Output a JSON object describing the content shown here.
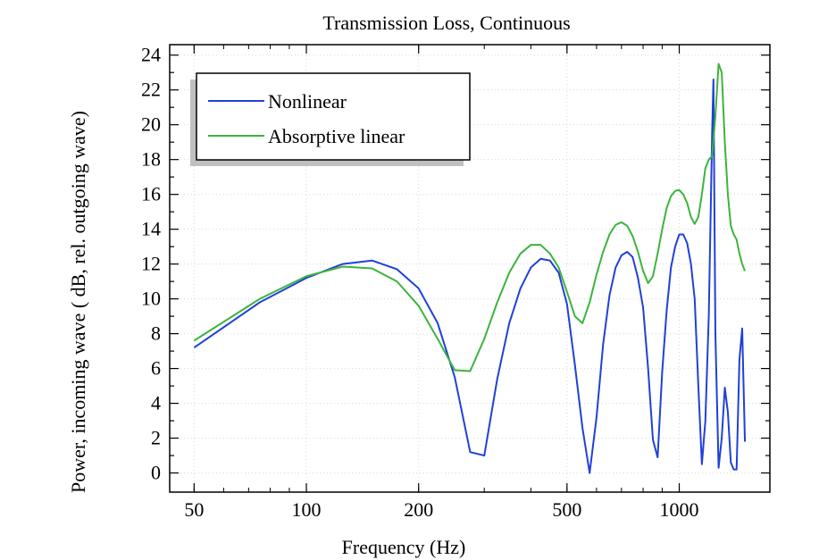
{
  "chart_data": {
    "type": "line",
    "title": "Transmission Loss, Continuous",
    "xlabel": "Frequency (Hz)",
    "ylabel": "Power, incoming wave ( dB, rel. outgoing wave)",
    "x_scale": "log",
    "xlim": [
      43,
      1750
    ],
    "ylim": [
      -1.1,
      24.6
    ],
    "x_ticks": [
      50,
      100,
      200,
      500,
      1000
    ],
    "x_tick_labels": [
      "50",
      "100",
      "200",
      "500",
      "1000"
    ],
    "y_ticks": [
      0,
      2,
      4,
      6,
      8,
      10,
      12,
      14,
      16,
      18,
      20,
      22,
      24
    ],
    "y_tick_labels": [
      "0",
      "2",
      "4",
      "6",
      "8",
      "10",
      "12",
      "14",
      "16",
      "18",
      "20",
      "22",
      "24"
    ],
    "grid": true,
    "legend_position": "top-left",
    "series": [
      {
        "name": "Nonlinear",
        "color": "#2140d8",
        "points": [
          [
            50,
            7.2
          ],
          [
            75,
            9.8
          ],
          [
            100,
            11.2
          ],
          [
            125,
            12.0
          ],
          [
            150,
            12.2
          ],
          [
            175,
            11.7
          ],
          [
            200,
            10.6
          ],
          [
            225,
            8.6
          ],
          [
            250,
            5.5
          ],
          [
            275,
            1.2
          ],
          [
            300,
            1.0
          ],
          [
            325,
            5.4
          ],
          [
            350,
            8.6
          ],
          [
            375,
            10.6
          ],
          [
            400,
            11.8
          ],
          [
            425,
            12.3
          ],
          [
            450,
            12.2
          ],
          [
            475,
            11.5
          ],
          [
            500,
            9.7
          ],
          [
            525,
            6.2
          ],
          [
            550,
            2.6
          ],
          [
            575,
            0.0
          ],
          [
            600,
            3.2
          ],
          [
            625,
            7.4
          ],
          [
            650,
            10.2
          ],
          [
            675,
            11.8
          ],
          [
            700,
            12.5
          ],
          [
            725,
            12.7
          ],
          [
            750,
            12.4
          ],
          [
            775,
            11.2
          ],
          [
            800,
            9.5
          ],
          [
            825,
            6.0
          ],
          [
            850,
            1.9
          ],
          [
            875,
            0.9
          ],
          [
            900,
            5.8
          ],
          [
            925,
            9.3
          ],
          [
            950,
            11.8
          ],
          [
            975,
            13.0
          ],
          [
            1000,
            13.7
          ],
          [
            1025,
            13.7
          ],
          [
            1050,
            13.2
          ],
          [
            1075,
            12.0
          ],
          [
            1100,
            10.0
          ],
          [
            1125,
            5.0
          ],
          [
            1150,
            0.5
          ],
          [
            1175,
            3.0
          ],
          [
            1200,
            9.0
          ],
          [
            1225,
            19.5
          ],
          [
            1235,
            22.6
          ],
          [
            1250,
            8.0
          ],
          [
            1275,
            0.3
          ],
          [
            1300,
            2.0
          ],
          [
            1325,
            4.9
          ],
          [
            1350,
            3.5
          ],
          [
            1375,
            0.6
          ],
          [
            1400,
            0.2
          ],
          [
            1425,
            0.2
          ],
          [
            1450,
            6.5
          ],
          [
            1475,
            8.3
          ],
          [
            1500,
            1.8
          ]
        ]
      },
      {
        "name": "Absorptive linear",
        "color": "#3cb43c",
        "points": [
          [
            50,
            7.6
          ],
          [
            75,
            10.0
          ],
          [
            100,
            11.3
          ],
          [
            125,
            11.85
          ],
          [
            150,
            11.75
          ],
          [
            175,
            11.0
          ],
          [
            200,
            9.6
          ],
          [
            225,
            7.7
          ],
          [
            250,
            5.9
          ],
          [
            275,
            5.85
          ],
          [
            300,
            7.7
          ],
          [
            325,
            9.8
          ],
          [
            350,
            11.5
          ],
          [
            375,
            12.6
          ],
          [
            400,
            13.1
          ],
          [
            425,
            13.1
          ],
          [
            450,
            12.6
          ],
          [
            475,
            11.8
          ],
          [
            500,
            10.4
          ],
          [
            525,
            9.0
          ],
          [
            550,
            8.6
          ],
          [
            575,
            9.8
          ],
          [
            600,
            11.4
          ],
          [
            625,
            12.7
          ],
          [
            650,
            13.7
          ],
          [
            675,
            14.25
          ],
          [
            700,
            14.4
          ],
          [
            725,
            14.2
          ],
          [
            750,
            13.6
          ],
          [
            775,
            12.7
          ],
          [
            800,
            11.6
          ],
          [
            825,
            10.9
          ],
          [
            850,
            11.3
          ],
          [
            875,
            12.6
          ],
          [
            900,
            14.0
          ],
          [
            925,
            15.2
          ],
          [
            950,
            15.9
          ],
          [
            975,
            16.2
          ],
          [
            1000,
            16.25
          ],
          [
            1025,
            16.0
          ],
          [
            1050,
            15.5
          ],
          [
            1075,
            14.7
          ],
          [
            1100,
            14.3
          ],
          [
            1125,
            14.7
          ],
          [
            1150,
            16.0
          ],
          [
            1175,
            17.5
          ],
          [
            1200,
            18.0
          ],
          [
            1225,
            18.2
          ],
          [
            1250,
            20.5
          ],
          [
            1275,
            23.5
          ],
          [
            1300,
            23.0
          ],
          [
            1325,
            19.0
          ],
          [
            1350,
            16.0
          ],
          [
            1375,
            14.2
          ],
          [
            1400,
            13.7
          ],
          [
            1425,
            13.4
          ],
          [
            1450,
            12.6
          ],
          [
            1475,
            12.0
          ],
          [
            1500,
            11.6
          ]
        ]
      }
    ]
  }
}
